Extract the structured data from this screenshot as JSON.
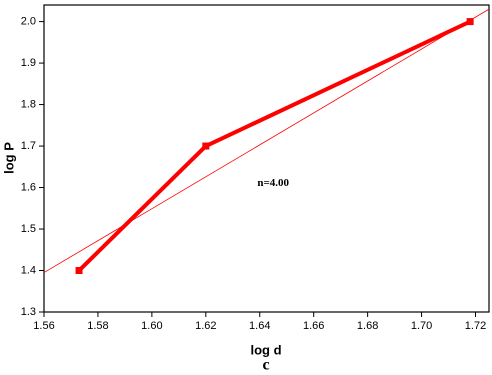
{
  "chart_data": {
    "type": "line",
    "xlabel": "log d",
    "ylabel": "log P",
    "caption": "c",
    "annotation": {
      "text": "n=4.00",
      "x": 1.645,
      "y": 1.61
    },
    "xlim": [
      1.56,
      1.725
    ],
    "ylim": [
      1.3,
      2.04
    ],
    "xticks": [
      1.56,
      1.58,
      {
        "value": 1.6,
        "label": "1.60"
      },
      1.62,
      1.64,
      1.66,
      1.68,
      {
        "value": 1.7,
        "label": "1.70"
      },
      1.72
    ],
    "yticks": [
      1.3,
      1.4,
      1.5,
      1.6,
      1.7,
      1.8,
      1.9,
      {
        "value": 2,
        "label": "2.0"
      }
    ],
    "series": [
      {
        "color": "#ff0000",
        "x": [
          1.573,
          1.62,
          1.718
        ],
        "values": [
          1.4,
          1.7,
          2.0
        ],
        "line_width": 4,
        "marker": "square"
      },
      {
        "color": "#ff0000",
        "x": [
          1.56,
          1.725
        ],
        "values": [
          1.395,
          2.03
        ],
        "line_width": 0.8
      }
    ]
  }
}
